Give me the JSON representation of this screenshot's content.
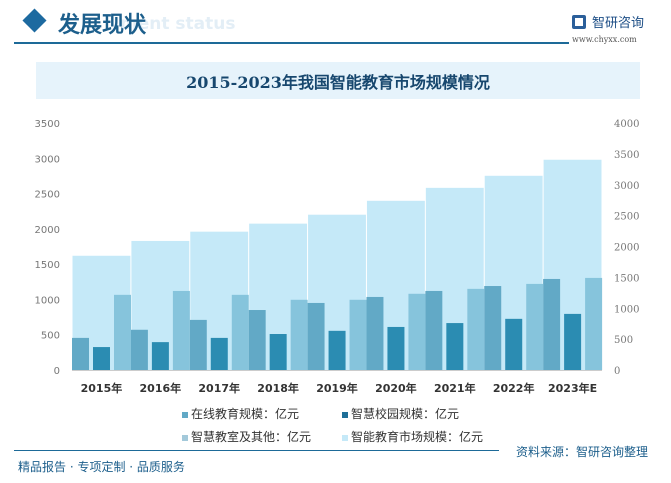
{
  "header": {
    "title": "发展现状",
    "subtitle": "ment status",
    "logo_text": "智研咨询",
    "logo_url": "www.chyxx.com"
  },
  "footer": {
    "slogan": "精品报告 · 专项定制 · 品质服务",
    "source": "资料来源：智研咨询整理"
  },
  "chart_data": {
    "type": "bar",
    "title": "2015-2023年我国智能教育市场规模情况",
    "categories": [
      "2015年",
      "2016年",
      "2017年",
      "2018年",
      "2019年",
      "2020年",
      "2021年",
      "2022年",
      "2023年E"
    ],
    "left_axis": {
      "ylim": [
        0,
        3500
      ],
      "ticks": [
        "0",
        "500",
        "1000",
        "1500",
        "2000",
        "2500",
        "3000",
        "3500"
      ]
    },
    "right_axis": {
      "ylim": [
        0,
        4000
      ],
      "ticks": [
        "0",
        "500",
        "1000",
        "1500",
        "2000",
        "2500",
        "3000",
        "3500",
        "4000"
      ]
    },
    "grid": false,
    "legend_position": "bottom",
    "series": [
      {
        "name": "在线教育规模：亿元",
        "axis": "left",
        "color": "#62a9c6",
        "values": [
          455,
          570,
          710,
          850,
          950,
          1035,
          1120,
          1190,
          1290
        ]
      },
      {
        "name": "智慧校园规模：亿元",
        "axis": "left",
        "color": "#2b8cb2",
        "values": [
          325,
          395,
          455,
          510,
          555,
          610,
          665,
          725,
          795
        ]
      },
      {
        "name": "智慧教室及其他：亿元",
        "axis": "left",
        "color": "#86c4dc",
        "values": [
          1065,
          1120,
          1065,
          995,
          995,
          1080,
          1150,
          1220,
          1305
        ]
      },
      {
        "name": "智能教育市场规模：亿元",
        "axis": "right",
        "color": "#c5e9f8",
        "values": [
          1850,
          2090,
          2240,
          2370,
          2515,
          2740,
          2950,
          3145,
          3405
        ]
      }
    ]
  }
}
